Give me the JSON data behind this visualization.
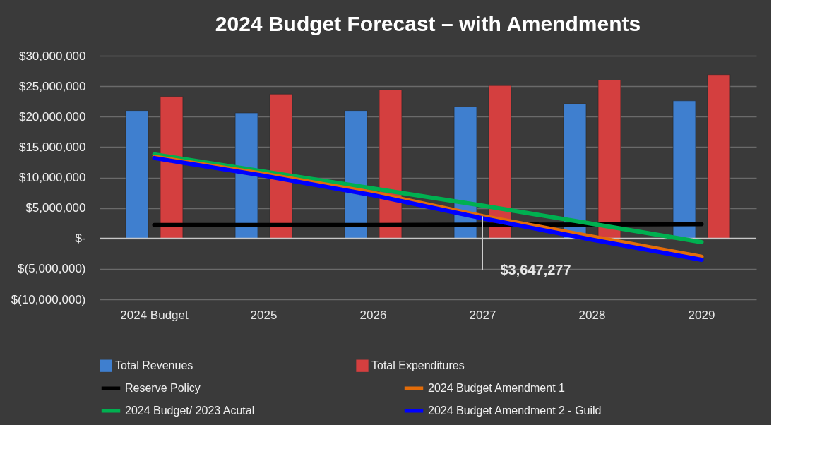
{
  "chart_data": {
    "type": "bar",
    "title": "2024   Budget Forecast – with Amendments",
    "categories": [
      "2024 Budget",
      "2025",
      "2026",
      "2027",
      "2028",
      "2029"
    ],
    "series": [
      {
        "name": "Total Revenues",
        "color": "#3f7fcf",
        "values": [
          21000000,
          20600000,
          21000000,
          21600000,
          22100000,
          22600000
        ]
      },
      {
        "name": "Total Expenditures",
        "color": "#d43f3f",
        "values": [
          23300000,
          23700000,
          24400000,
          25100000,
          26000000,
          26900000
        ]
      },
      {
        "name": "Reserve Policy",
        "type": "line",
        "color": "#000000",
        "values": [
          2200000,
          2200000,
          2200000,
          2250000,
          2300000,
          2350000
        ]
      },
      {
        "name": "2024 Budget/ 2023 Acutal",
        "type": "line",
        "color": "#00b050",
        "values": [
          13800000,
          11000000,
          8200000,
          5400000,
          2400000,
          -600000
        ]
      },
      {
        "name": "2024 Budget Amendment 1",
        "type": "line",
        "color": "#e36c09",
        "values": [
          13400000,
          10600000,
          7500000,
          3647277,
          300000,
          -3000000
        ]
      },
      {
        "name": "2024 Budget Amendment 2 - Guild",
        "type": "line",
        "color": "#0000ff",
        "values": [
          13200000,
          10300000,
          7100000,
          3300000,
          -200000,
          -3500000
        ]
      }
    ],
    "ylim": [
      -10000000,
      30000000
    ],
    "yticks": [
      {
        "value": -10000000,
        "label": "$(10,000,000)"
      },
      {
        "value": -5000000,
        "label": "$(5,000,000)"
      },
      {
        "value": 0,
        "label": "$-"
      },
      {
        "value": 5000000,
        "label": "$5,000,000"
      },
      {
        "value": 10000000,
        "label": "$10,000,000"
      },
      {
        "value": 15000000,
        "label": "$15,000,000"
      },
      {
        "value": 20000000,
        "label": "$20,000,000"
      },
      {
        "value": 25000000,
        "label": "$25,000,000"
      },
      {
        "value": 30000000,
        "label": "$30,000,000"
      }
    ],
    "annotations": [
      {
        "text": "$3,647,277",
        "x": "2027",
        "y": 3647277
      }
    ],
    "grid": "y",
    "legend": "bottom"
  }
}
